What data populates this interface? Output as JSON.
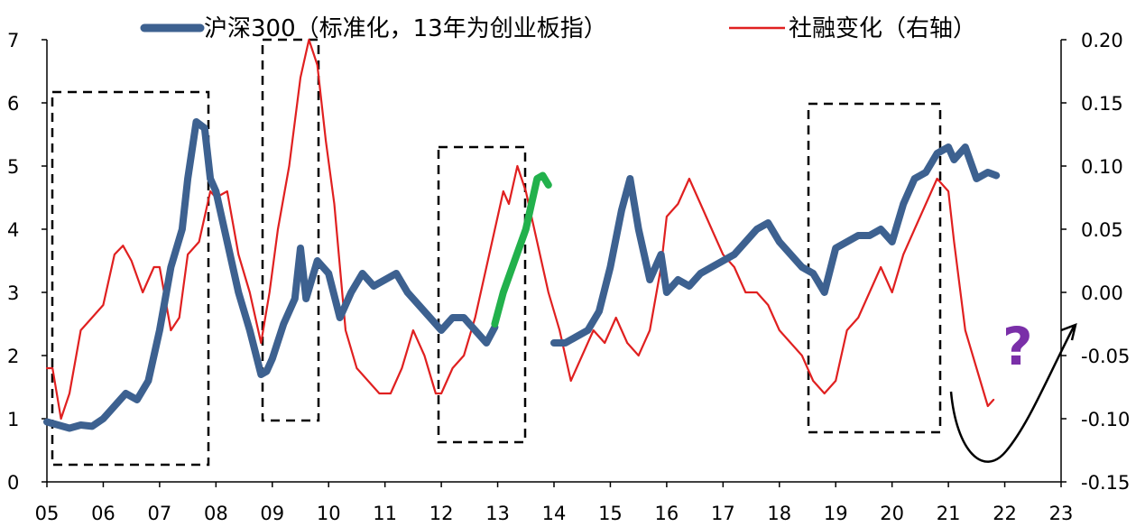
{
  "chart_data": {
    "type": "line",
    "title": "",
    "legend": {
      "placement": "top",
      "entries": [
        {
          "label": "沪深300（标准化，13年为创业板指）",
          "color": "#3d6190"
        },
        {
          "label": "社融变化（右轴）",
          "color": "#e02020"
        }
      ]
    },
    "x_axis": {
      "ticks": [
        "05",
        "06",
        "07",
        "08",
        "09",
        "10",
        "11",
        "12",
        "13",
        "14",
        "15",
        "16",
        "17",
        "18",
        "19",
        "20",
        "21",
        "22",
        "23"
      ],
      "range": [
        2005,
        2023
      ]
    },
    "y_left": {
      "ticks": [
        "0",
        "1",
        "2",
        "3",
        "4",
        "5",
        "6",
        "7"
      ],
      "range": [
        0,
        7
      ]
    },
    "y_right": {
      "ticks": [
        "-0.15",
        "-0.10",
        "-0.05",
        "0.00",
        "0.05",
        "0.10",
        "0.15",
        "0.20"
      ],
      "range": [
        -0.15,
        0.2
      ]
    },
    "grid": false,
    "series": [
      {
        "name": "沪深300（标准化，13年为创业板指）",
        "axis": "left",
        "color": "#3d6190",
        "x": [
          2005.0,
          2005.2,
          2005.4,
          2005.6,
          2005.8,
          2006.0,
          2006.2,
          2006.4,
          2006.6,
          2006.8,
          2007.0,
          2007.2,
          2007.4,
          2007.5,
          2007.65,
          2007.8,
          2007.9,
          2008.0,
          2008.2,
          2008.4,
          2008.6,
          2008.8,
          2008.9,
          2009.0,
          2009.2,
          2009.4,
          2009.5,
          2009.6,
          2009.8,
          2010.0,
          2010.2,
          2010.4,
          2010.6,
          2010.8,
          2011.0,
          2011.2,
          2011.4,
          2011.6,
          2011.8,
          2012.0,
          2012.2,
          2012.4,
          2012.6,
          2012.8,
          2012.95
        ],
        "y": [
          0.95,
          0.9,
          0.85,
          0.9,
          0.88,
          1.0,
          1.2,
          1.4,
          1.3,
          1.6,
          2.4,
          3.4,
          4.0,
          4.8,
          5.7,
          5.6,
          4.8,
          4.6,
          3.8,
          3.0,
          2.4,
          1.7,
          1.75,
          1.95,
          2.5,
          2.9,
          3.7,
          2.9,
          3.5,
          3.3,
          2.6,
          3.0,
          3.3,
          3.1,
          3.2,
          3.3,
          3.0,
          2.8,
          2.6,
          2.4,
          2.6,
          2.6,
          2.4,
          2.2,
          2.45
        ]
      },
      {
        "name": "",
        "axis": "left",
        "color": "#22b14c",
        "x": [
          2012.95,
          2013.1,
          2013.3,
          2013.5,
          2013.6,
          2013.7,
          2013.8,
          2013.9
        ],
        "y": [
          2.5,
          3.0,
          3.5,
          4.0,
          4.4,
          4.8,
          4.85,
          4.7
        ]
      },
      {
        "name": "",
        "axis": "left",
        "color": "#3d6190",
        "x": [
          2014.0,
          2014.2,
          2014.4,
          2014.6,
          2014.8,
          2015.0,
          2015.2,
          2015.35,
          2015.5,
          2015.7,
          2015.9,
          2016.0,
          2016.2,
          2016.4,
          2016.6,
          2016.8,
          2017.0,
          2017.2,
          2017.4,
          2017.6,
          2017.8,
          2018.0,
          2018.2,
          2018.4,
          2018.6,
          2018.8,
          2019.0,
          2019.2,
          2019.4,
          2019.6,
          2019.8,
          2020.0,
          2020.2,
          2020.4,
          2020.6,
          2020.8,
          2021.0,
          2021.1,
          2021.3,
          2021.5,
          2021.7,
          2021.85
        ],
        "y": [
          2.2,
          2.2,
          2.3,
          2.4,
          2.7,
          3.4,
          4.3,
          4.8,
          4.0,
          3.2,
          3.6,
          3.0,
          3.2,
          3.1,
          3.3,
          3.4,
          3.5,
          3.6,
          3.8,
          4.0,
          4.1,
          3.8,
          3.6,
          3.4,
          3.3,
          3.0,
          3.7,
          3.8,
          3.9,
          3.9,
          4.0,
          3.8,
          4.4,
          4.8,
          4.9,
          5.2,
          5.3,
          5.1,
          5.3,
          4.8,
          4.9,
          4.85
        ]
      },
      {
        "name": "社融变化（右轴）",
        "axis": "right",
        "color": "#e02020",
        "x": [
          2005.0,
          2005.1,
          2005.25,
          2005.4,
          2005.6,
          2005.8,
          2006.0,
          2006.2,
          2006.35,
          2006.5,
          2006.7,
          2006.9,
          2007.0,
          2007.2,
          2007.35,
          2007.5,
          2007.7,
          2007.9,
          2008.0,
          2008.2,
          2008.4,
          2008.6,
          2008.8,
          2008.95,
          2009.1,
          2009.3,
          2009.5,
          2009.65,
          2009.8,
          2009.95,
          2010.1,
          2010.3,
          2010.5,
          2010.7,
          2010.9,
          2011.1,
          2011.3,
          2011.5,
          2011.7,
          2011.9,
          2012.0,
          2012.2,
          2012.4,
          2012.6,
          2012.8,
          2013.0,
          2013.1,
          2013.2,
          2013.35,
          2013.5,
          2013.7,
          2013.9,
          2014.1,
          2014.3,
          2014.5,
          2014.7,
          2014.9,
          2015.1,
          2015.3,
          2015.5,
          2015.7,
          2015.9,
          2016.0,
          2016.2,
          2016.4,
          2016.6,
          2016.8,
          2017.0,
          2017.2,
          2017.4,
          2017.6,
          2017.8,
          2018.0,
          2018.2,
          2018.4,
          2018.6,
          2018.8,
          2019.0,
          2019.2,
          2019.4,
          2019.6,
          2019.8,
          2020.0,
          2020.2,
          2020.4,
          2020.6,
          2020.8,
          2021.0,
          2021.1,
          2021.3,
          2021.5,
          2021.7,
          2021.8
        ],
        "y": [
          -0.06,
          -0.06,
          -0.1,
          -0.08,
          -0.03,
          -0.02,
          -0.01,
          0.03,
          0.037,
          0.025,
          0.0,
          0.02,
          0.02,
          -0.03,
          -0.02,
          0.03,
          0.04,
          0.08,
          0.075,
          0.08,
          0.03,
          0.0,
          -0.04,
          0.0,
          0.05,
          0.1,
          0.17,
          0.2,
          0.18,
          0.12,
          0.07,
          -0.03,
          -0.06,
          -0.07,
          -0.08,
          -0.08,
          -0.06,
          -0.03,
          -0.05,
          -0.08,
          -0.08,
          -0.06,
          -0.05,
          -0.02,
          0.02,
          0.06,
          0.08,
          0.07,
          0.1,
          0.08,
          0.04,
          0.0,
          -0.03,
          -0.07,
          -0.05,
          -0.03,
          -0.04,
          -0.02,
          -0.04,
          -0.05,
          -0.03,
          0.02,
          0.06,
          0.07,
          0.09,
          0.07,
          0.05,
          0.03,
          0.02,
          0.0,
          0.0,
          -0.01,
          -0.03,
          -0.04,
          -0.05,
          -0.07,
          -0.08,
          -0.07,
          -0.03,
          -0.02,
          0.0,
          0.02,
          0.0,
          0.03,
          0.05,
          0.07,
          0.09,
          0.08,
          0.04,
          -0.03,
          -0.06,
          -0.09,
          -0.085
        ]
      }
    ]
  },
  "annotations": {
    "question_mark": "?"
  }
}
